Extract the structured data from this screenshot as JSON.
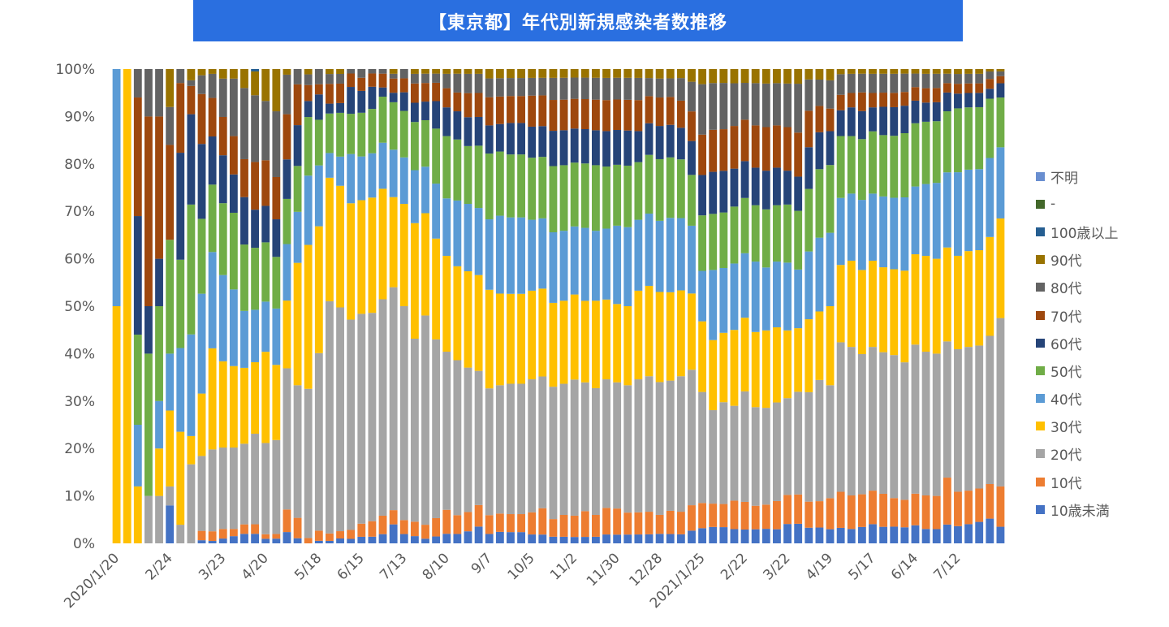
{
  "title": "【東京都】年代別新規感染者数推移",
  "chart_data": {
    "type": "bar",
    "stacked": "percent",
    "ylim": [
      0,
      100
    ],
    "y_ticks": [
      "0%",
      "10%",
      "20%",
      "30%",
      "40%",
      "50%",
      "60%",
      "70%",
      "80%",
      "90%",
      "100%"
    ],
    "x_tick_labels": [
      "2020/1/20",
      "2/24",
      "3/23",
      "4/20",
      "5/18",
      "6/15",
      "7/13",
      "8/10",
      "9/7",
      "10/5",
      "11/2",
      "11/30",
      "12/28",
      "2021/1/25",
      "2/22",
      "3/22",
      "4/19",
      "5/17",
      "6/14",
      "7/12"
    ],
    "x_tick_bars": [
      0,
      5,
      10,
      14,
      19,
      23,
      27,
      31,
      35,
      39,
      43,
      47,
      51,
      55,
      59,
      63,
      67,
      71,
      75,
      79
    ],
    "legend_position": "right",
    "legend_order_top_to_bottom": [
      "不明",
      "-",
      "100歳以上",
      "90代",
      "80代",
      "70代",
      "60代",
      "50代",
      "40代",
      "30代",
      "20代",
      "10代",
      "10歳未満"
    ],
    "series": [
      {
        "name": "10歳未満",
        "color": "#4472c4",
        "values": [
          0,
          0,
          0,
          0,
          0,
          8,
          0,
          0,
          0.5,
          0.5,
          1,
          1.5,
          2,
          2,
          1,
          1,
          2,
          1,
          0,
          0.5,
          0.5,
          1,
          1,
          1.5,
          1.5,
          2,
          4,
          2,
          1.5,
          1,
          1.5,
          2,
          2,
          2.5,
          3.5,
          2,
          2.5,
          2.5,
          2.5,
          2,
          2,
          1.5,
          1.5,
          1.5,
          1.5,
          1.5,
          2,
          2,
          2,
          2,
          2,
          2,
          2,
          2,
          3,
          3,
          3.5,
          3.5,
          3,
          3,
          3,
          3,
          3,
          4,
          4,
          3,
          3,
          2.5,
          3,
          3,
          3.5,
          4,
          3.5,
          3.5,
          3.5,
          4,
          3,
          3,
          4,
          3.5,
          4,
          4.5,
          5,
          3.5
        ]
      },
      {
        "name": "10代",
        "color": "#ed7d31",
        "values": [
          0,
          0,
          0,
          0,
          0,
          0,
          0,
          0,
          1.5,
          2,
          2,
          1.5,
          2,
          2,
          1,
          1,
          4,
          4,
          1,
          2,
          1.5,
          1.5,
          2,
          3,
          3.5,
          4,
          3,
          3,
          3,
          3,
          4,
          5,
          4,
          4,
          4.5,
          4,
          4,
          4,
          4,
          5,
          6,
          4,
          5,
          5,
          6,
          5,
          6,
          6,
          5,
          5,
          5,
          4,
          5,
          5,
          6,
          5,
          5,
          5,
          6,
          6,
          5,
          5,
          6,
          6,
          6,
          5,
          5,
          5.5,
          7,
          7,
          7,
          7,
          7,
          6,
          6,
          7,
          7,
          7,
          10,
          7,
          7,
          7,
          7,
          8.5
        ]
      },
      {
        "name": "20代",
        "color": "#a5a5a5",
        "values": [
          0,
          0,
          0,
          10,
          10,
          4,
          4,
          14,
          12,
          17,
          17,
          17,
          17,
          19,
          20,
          20,
          25,
          26,
          28,
          35,
          47,
          46,
          47,
          48,
          47,
          47,
          47,
          46,
          38,
          45,
          39,
          33,
          33,
          30,
          28,
          27,
          28,
          29,
          29,
          30,
          30,
          30,
          30,
          32,
          30,
          29,
          29,
          29,
          29,
          30,
          30,
          28,
          28,
          30,
          32,
          22,
          20,
          22,
          20,
          24,
          21,
          20,
          21,
          20,
          21,
          21,
          23,
          20,
          29,
          31,
          30,
          30,
          30,
          30,
          30,
          33,
          30,
          30,
          29,
          29,
          30,
          30,
          30,
          35.5
        ]
      },
      {
        "name": "30代",
        "color": "#ffc000",
        "values": [
          50,
          100,
          12,
          0,
          10,
          16,
          20,
          5,
          10,
          21,
          18,
          17,
          16,
          15,
          20,
          16,
          12,
          24,
          27,
          25,
          25,
          25,
          26,
          26,
          26,
          24,
          19,
          22,
          24,
          22,
          22,
          20,
          20,
          20,
          20,
          21,
          20,
          20,
          20,
          20,
          20,
          19,
          19,
          20,
          19,
          20,
          18,
          18,
          18,
          20,
          20,
          19,
          19,
          19,
          18,
          14,
          15,
          15,
          16,
          16,
          16,
          16,
          16,
          14,
          13,
          14,
          13,
          14,
          15,
          18,
          18,
          18,
          18,
          18,
          20,
          20,
          20,
          20,
          20,
          19,
          20,
          20,
          20,
          21
        ]
      },
      {
        "name": "40代",
        "color": "#5b9bd5",
        "values": [
          50,
          0,
          13,
          0,
          10,
          12,
          18,
          18,
          16,
          20,
          18,
          16,
          12,
          11,
          11,
          12,
          10,
          10,
          13,
          12,
          5,
          6,
          11,
          10,
          10,
          10,
          10,
          10,
          11,
          10,
          12,
          12,
          14,
          14,
          14,
          15,
          17,
          17,
          17,
          16,
          16,
          16,
          16,
          16,
          17,
          16,
          16,
          18,
          18,
          16,
          16,
          15,
          16,
          16,
          16,
          10,
          15,
          14,
          14,
          14,
          15,
          13,
          14,
          14,
          12,
          13,
          14,
          13,
          13,
          14,
          15,
          14,
          15,
          15,
          16,
          15,
          15,
          16,
          16,
          17,
          17,
          17,
          16,
          15
        ]
      },
      {
        "name": "50代",
        "color": "#70ad47",
        "values": [
          0,
          0,
          19,
          30,
          20,
          24,
          19,
          23,
          12,
          14,
          15,
          16,
          14,
          13,
          13,
          11,
          8,
          9,
          11,
          9,
          8,
          9,
          9,
          10,
          10,
          10,
          10,
          10,
          10,
          10,
          12,
          13,
          13,
          12,
          13,
          14,
          14,
          14,
          14,
          14,
          14,
          15,
          15,
          15,
          15,
          15,
          14,
          14,
          14,
          13,
          13,
          13,
          13,
          13,
          12,
          11,
          12,
          12,
          12,
          12,
          12,
          12,
          12,
          12,
          12,
          12,
          13,
          12,
          12,
          12,
          13,
          13,
          13,
          13,
          14,
          14,
          13,
          13,
          13,
          13,
          13,
          13,
          12,
          10.5
        ]
      },
      {
        "name": "60代",
        "color": "#264478",
        "values": [
          0,
          0,
          25,
          10,
          10,
          0,
          23,
          16,
          12,
          10,
          10,
          8,
          10,
          8,
          8,
          8,
          7,
          8,
          3,
          5,
          2,
          2,
          6,
          5,
          5,
          2,
          2,
          4,
          4,
          4,
          6,
          6,
          6,
          6,
          6,
          6,
          6,
          7,
          7,
          7,
          7,
          8,
          8,
          8,
          8,
          8,
          8,
          8,
          8,
          7,
          7,
          7,
          7,
          7,
          8,
          8,
          9,
          9,
          8,
          8,
          8,
          8,
          8,
          7,
          7,
          8,
          7,
          6,
          5,
          6,
          6,
          5,
          6,
          6,
          6,
          5,
          4,
          4,
          4,
          3,
          3,
          3,
          2,
          3
        ]
      },
      {
        "name": "70代",
        "color": "#9e480e",
        "values": [
          0,
          0,
          25,
          40,
          30,
          20,
          15,
          5,
          8,
          8,
          8,
          8,
          8,
          10,
          10,
          9,
          8,
          8,
          3,
          2,
          4,
          4,
          3,
          3,
          3,
          3,
          3,
          3,
          4,
          4,
          4,
          4,
          4,
          5,
          5,
          6,
          6,
          6,
          6,
          7,
          7,
          7,
          7,
          7,
          7,
          7,
          7,
          7,
          7,
          7,
          6,
          6,
          6,
          6,
          7,
          8,
          9,
          9,
          9,
          9,
          9,
          9,
          9,
          9,
          9,
          7,
          5,
          4,
          3,
          3,
          4,
          3,
          3,
          3,
          3,
          3,
          3,
          3,
          2,
          2,
          2,
          2,
          2,
          1.5
        ]
      },
      {
        "name": "80代",
        "color": "#636363",
        "values": [
          0,
          0,
          6,
          10,
          10,
          8,
          3,
          1,
          3,
          5,
          8,
          12,
          15,
          14,
          13,
          14,
          7,
          3,
          2,
          3,
          2,
          2,
          1,
          2,
          1,
          1,
          1,
          2,
          2,
          2,
          2,
          3,
          4,
          4,
          4,
          4,
          4,
          4,
          4,
          4,
          4,
          5,
          5,
          5,
          5,
          5,
          5,
          5,
          5,
          5,
          4,
          4,
          4,
          5,
          7,
          10,
          10,
          10,
          9,
          8,
          9,
          9,
          9,
          9,
          10,
          6,
          5,
          5,
          4,
          4,
          4,
          4,
          4,
          4,
          4,
          3,
          3,
          3,
          2,
          2,
          2,
          2,
          1.5,
          1
        ]
      },
      {
        "name": "90代",
        "color": "#997300",
        "values": [
          0,
          0,
          0,
          0,
          0,
          8,
          0,
          2,
          1,
          1,
          2,
          2,
          4,
          5,
          7,
          9,
          1,
          0,
          1,
          0,
          1,
          1,
          0,
          0,
          0,
          0,
          1,
          0,
          1,
          1,
          1,
          1,
          1,
          1,
          1,
          2,
          2,
          2,
          2,
          2,
          2,
          2,
          2,
          2,
          2,
          2,
          2,
          2,
          2,
          2,
          2,
          2,
          2,
          2,
          3,
          3,
          3,
          3,
          3,
          3,
          3,
          3,
          3,
          3,
          3,
          2,
          2,
          2,
          1,
          1,
          1,
          1,
          1,
          1,
          1,
          1,
          1,
          1,
          1,
          1,
          1,
          1,
          0.5,
          0.5
        ]
      },
      {
        "name": "100歳以上",
        "color": "#255e91",
        "values": [
          0,
          0,
          0,
          0,
          0,
          0,
          0,
          0,
          0,
          0,
          0,
          0,
          0,
          0.5,
          0,
          0,
          0,
          0,
          0,
          0,
          0,
          0,
          0,
          0,
          0,
          0,
          0,
          0,
          0,
          0,
          0,
          0,
          0,
          0,
          0,
          0,
          0,
          0,
          0,
          0,
          0,
          0,
          0,
          0,
          0,
          0,
          0,
          0,
          0,
          0,
          0,
          0,
          0,
          0,
          0,
          0,
          0,
          0,
          0,
          0,
          0,
          0,
          0,
          0,
          0,
          0,
          0,
          0,
          0,
          0,
          0,
          0,
          0,
          0,
          0,
          0,
          0,
          0,
          0,
          0,
          0,
          0,
          0,
          0
        ]
      },
      {
        "name": "-",
        "color": "#43682b",
        "values": [
          0,
          0,
          0,
          0,
          0,
          0,
          0,
          0,
          0,
          0,
          0,
          0,
          0,
          0,
          0,
          0,
          0,
          0,
          0,
          0,
          0,
          0,
          0,
          0,
          0,
          0,
          0,
          0,
          0,
          0,
          0,
          0,
          0,
          0,
          0,
          0,
          0,
          0,
          0,
          0,
          0,
          0,
          0,
          0,
          0,
          0,
          0,
          0,
          0,
          0,
          0,
          0,
          0,
          0,
          0,
          0,
          0,
          0,
          0,
          0,
          0,
          0,
          0,
          0,
          0,
          0,
          0,
          0,
          0,
          0,
          0,
          0,
          0,
          0,
          0,
          0,
          0,
          0,
          0,
          0,
          0,
          0,
          0,
          0
        ]
      },
      {
        "name": "不明",
        "color": "#698ed0",
        "values": [
          0,
          0,
          0,
          0,
          0,
          0,
          0,
          0,
          0,
          0,
          0,
          0,
          0,
          0,
          0,
          0,
          0,
          0,
          0,
          0,
          0,
          0,
          0,
          0,
          0,
          0,
          0,
          0,
          0,
          0,
          0,
          0,
          0,
          0,
          0,
          0,
          0,
          0,
          0,
          0,
          0,
          0,
          0,
          0,
          0,
          0,
          0,
          0,
          0,
          0,
          0,
          0,
          0,
          0,
          0,
          0,
          0,
          0,
          0,
          0,
          0,
          0,
          0,
          0,
          0,
          0,
          0,
          0,
          0,
          0,
          0,
          0,
          0,
          0,
          0,
          0,
          0,
          0,
          0,
          0,
          0,
          0,
          0,
          0
        ]
      }
    ]
  }
}
